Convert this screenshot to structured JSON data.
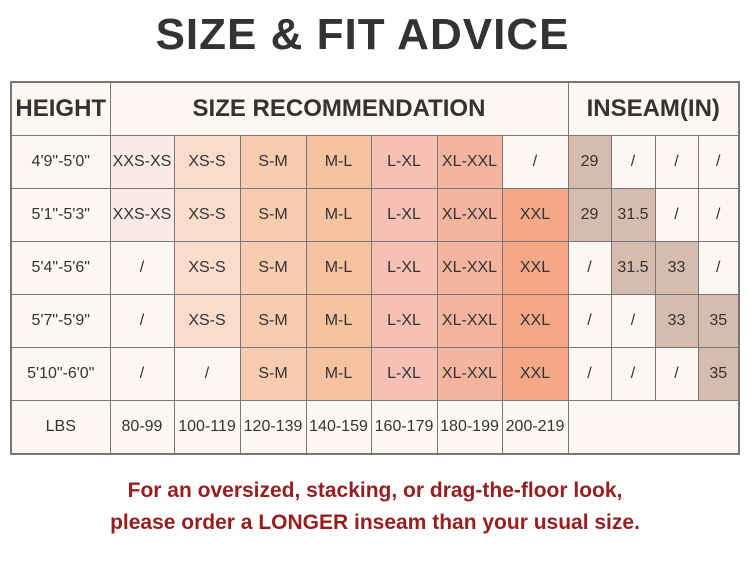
{
  "title": "SIZE & FIT ADVICE",
  "headers": {
    "height": "HEIGHT",
    "size": "SIZE RECOMMENDATION",
    "inseam": "INSEAM(IN)"
  },
  "size_colors": [
    "#f9ebe4",
    "#f9dccb",
    "#f8cdaf",
    "#f6c3a0",
    "#f6c0b4",
    "#f4b49d",
    "#f4a887"
  ],
  "inseam_color": "#d5bcae",
  "empty_color": "#fcf7f3",
  "rows": [
    {
      "height": "4'9\"-5'0\"",
      "sizes": [
        "XXS-XS",
        "XS-S",
        "S-M",
        "M-L",
        "L-XL",
        "XL-XXL",
        "/"
      ],
      "inseam": [
        "29",
        "/",
        "/",
        "/"
      ]
    },
    {
      "height": "5'1\"-5'3\"",
      "sizes": [
        "XXS-XS",
        "XS-S",
        "S-M",
        "M-L",
        "L-XL",
        "XL-XXL",
        "XXL"
      ],
      "inseam": [
        "29",
        "31.5",
        "/",
        "/"
      ]
    },
    {
      "height": "5'4\"-5'6\"",
      "sizes": [
        "/",
        "XS-S",
        "S-M",
        "M-L",
        "L-XL",
        "XL-XXL",
        "XXL"
      ],
      "inseam": [
        "/",
        "31.5",
        "33",
        "/"
      ]
    },
    {
      "height": "5'7\"-5'9\"",
      "sizes": [
        "/",
        "XS-S",
        "S-M",
        "M-L",
        "L-XL",
        "XL-XXL",
        "XXL"
      ],
      "inseam": [
        "/",
        "/",
        "33",
        "35"
      ]
    },
    {
      "height": "5'10\"-6'0\"",
      "sizes": [
        "/",
        "/",
        "S-M",
        "M-L",
        "L-XL",
        "XL-XXL",
        "XXL"
      ],
      "inseam": [
        "/",
        "/",
        "/",
        "35"
      ]
    }
  ],
  "lbs": {
    "label": "LBS",
    "values": [
      "80-99",
      "100-119",
      "120-139",
      "140-159",
      "160-179",
      "180-199",
      "200-219"
    ]
  },
  "footer": {
    "line1": "For an oversized, stacking, or drag-the-floor look,",
    "line2": "please order a LONGER inseam than your usual size."
  }
}
